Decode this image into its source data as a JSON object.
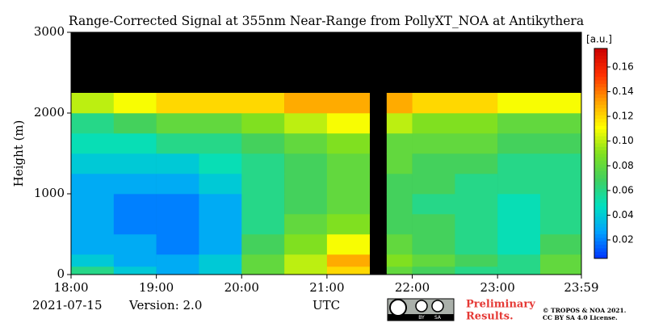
{
  "chart_data": {
    "type": "heatmap",
    "title": "Range-Corrected Signal at 355nm Near-Range from PollyXT_NOA at Antikythera",
    "y_label": "Height (m)",
    "x_label": "UTC",
    "colorbar_label": "[a.u.]",
    "date": "2021-07-15",
    "version": "Version: 2.0",
    "preliminary": [
      "Preliminary",
      "Results."
    ],
    "copyright": [
      "© TROPOS & NOA 2021.",
      "CC BY SA 4.0 License."
    ],
    "license_badge": [
      "BY",
      "SA"
    ],
    "x_edges": [
      18,
      18.5,
      19,
      19.5,
      20,
      20.5,
      21,
      21.5,
      21.7,
      22,
      22.5,
      23,
      23.5,
      23.983
    ],
    "y_edges": [
      0,
      100,
      250,
      500,
      750,
      1000,
      1250,
      1500,
      1750,
      2000,
      2250
    ],
    "z": [
      [
        0.06,
        0.04,
        0.03,
        0.04,
        0.08,
        0.1,
        0.12,
        null,
        0.08,
        0.07,
        0.06,
        0.06,
        0.08
      ],
      [
        0.04,
        0.03,
        0.03,
        0.04,
        0.08,
        0.1,
        0.13,
        null,
        0.09,
        0.08,
        0.07,
        0.06,
        0.08
      ],
      [
        0.03,
        0.03,
        0.02,
        0.03,
        0.07,
        0.09,
        0.11,
        null,
        0.08,
        0.07,
        0.06,
        0.05,
        0.07
      ],
      [
        0.03,
        0.02,
        0.02,
        0.03,
        0.06,
        0.08,
        0.09,
        null,
        0.07,
        0.07,
        0.06,
        0.05,
        0.06
      ],
      [
        0.03,
        0.02,
        0.02,
        0.03,
        0.06,
        0.07,
        0.08,
        null,
        0.07,
        0.06,
        0.06,
        0.05,
        0.06
      ],
      [
        0.03,
        0.03,
        0.03,
        0.04,
        0.06,
        0.07,
        0.08,
        null,
        0.07,
        0.07,
        0.06,
        0.06,
        0.06
      ],
      [
        0.04,
        0.04,
        0.04,
        0.05,
        0.06,
        0.07,
        0.08,
        null,
        0.08,
        0.07,
        0.07,
        0.06,
        0.06
      ],
      [
        0.05,
        0.05,
        0.06,
        0.06,
        0.07,
        0.08,
        0.09,
        null,
        0.08,
        0.08,
        0.08,
        0.07,
        0.07
      ],
      [
        0.06,
        0.07,
        0.08,
        0.08,
        0.09,
        0.1,
        0.11,
        null,
        0.1,
        0.09,
        0.09,
        0.08,
        0.08
      ],
      [
        0.1,
        0.11,
        0.12,
        0.12,
        0.12,
        0.13,
        0.13,
        null,
        0.13,
        0.12,
        0.12,
        0.11,
        0.11
      ]
    ],
    "xlim": [
      18,
      23.983
    ],
    "xticks": [
      {
        "value": 18,
        "label": "18:00"
      },
      {
        "value": 19,
        "label": "19:00"
      },
      {
        "value": 20,
        "label": "20:00"
      },
      {
        "value": 21,
        "label": "21:00"
      },
      {
        "value": 22,
        "label": "22:00"
      },
      {
        "value": 23,
        "label": "23:00"
      },
      {
        "value": 23.983,
        "label": "23:59"
      }
    ],
    "ylim": [
      0,
      3000
    ],
    "yticks": [
      0,
      1000,
      2000,
      3000
    ],
    "clim": [
      0.005,
      0.175
    ],
    "cticks": [
      0.02,
      0.04,
      0.06,
      0.08,
      {
        "value": 0.1,
        "label": "0.10"
      },
      0.12,
      0.14,
      0.16
    ],
    "colorscale": [
      "#0033ff",
      "#00a0ff",
      "#00e0c0",
      "#40d060",
      "#80e020",
      "#ffff00",
      "#ffa000",
      "#ff3000",
      "#cc0000"
    ],
    "background": "#000000"
  }
}
